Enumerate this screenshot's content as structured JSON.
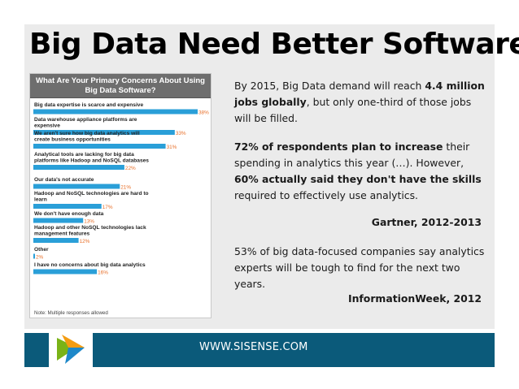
{
  "slide": {
    "title": "Big Data Need Better Software",
    "footer_url": "WWW.SISENSE.COM"
  },
  "chart_data": {
    "type": "bar",
    "title": "What Are Your Primary Concerns About Using Big Data Software?",
    "categories": [
      "Big data expertise is scarce and expensive",
      "Data warehouse appliance platforms are expensive",
      "We aren't sure how big data analytics will create business opportunities",
      "Analytical tools are lacking for big data platforms like Hadoop and NoSQL databases",
      "Our data's not accurate",
      "Hadoop and NoSQL technologies are hard to learn",
      "We don't have enough data",
      "Hadoop and other NoSQL technologies lack management features",
      "Other",
      "I have no concerns about big data analytics"
    ],
    "values": [
      38,
      33,
      31,
      22,
      21,
      17,
      13,
      12,
      2,
      16
    ],
    "value_labels": [
      "38%",
      "33%",
      "31%",
      "22%",
      "21%",
      "17%",
      "13%",
      "12%",
      "2%",
      "16%"
    ],
    "xlim": [
      0,
      38
    ],
    "bar_color": "#2a9fd8",
    "note": "Note: Multiple responses allowed"
  },
  "text": {
    "p1_a": "By 2015, Big Data demand will reach ",
    "p1_b": "4.4 million jobs globally",
    "p1_c": ", but only one-third of those jobs will be filled.",
    "p2_a": "72% of respondents plan to increase",
    "p2_b": " their spending in analytics this year (…). However, ",
    "p2_c": "60% actually said they don't have the skills",
    "p2_d": " required to effectively use analytics.",
    "source1": "Gartner, 2012-2013",
    "p3": "53% of big data-focused companies say analytics experts will be tough to find for the next two years.",
    "source2": "InformationWeek, 2012"
  },
  "colors": {
    "footer": "#0b5a7a",
    "panel": "#ebebeb",
    "bar": "#2a9fd8",
    "chart_header": "#6e6e6e"
  }
}
